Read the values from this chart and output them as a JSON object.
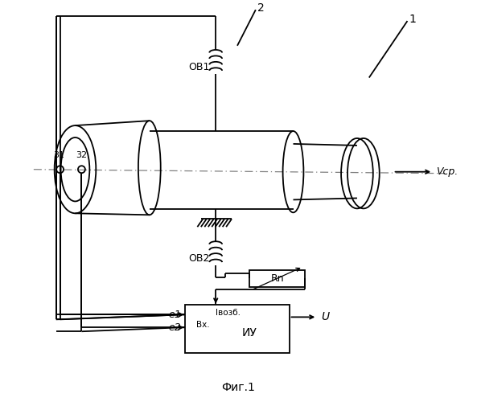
{
  "title": "Фиг.1",
  "label_1": "1",
  "label_2": "2",
  "label_OB1": "ОВ1",
  "label_OB2": "ОВ2",
  "label_Rn": "Rn",
  "label_IU": "ИУ",
  "label_Vср": "Vср.",
  "label_U": "U",
  "label_e1": "e1",
  "label_e2": "e2",
  "label_31": "31",
  "label_32": "32",
  "label_Ivozb": "Iвозб.",
  "label_Vx": "Вх.",
  "bg_color": "#ffffff",
  "line_color": "#000000",
  "line_width": 1.3
}
